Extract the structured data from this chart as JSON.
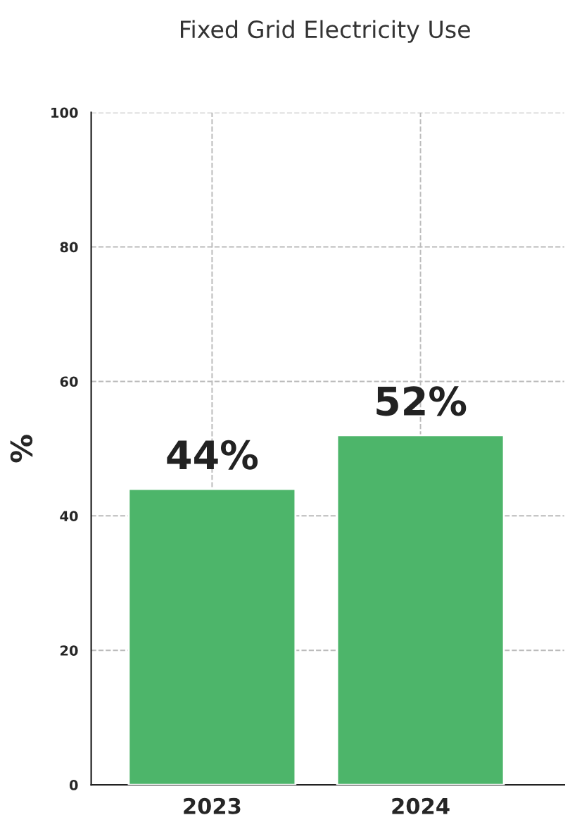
{
  "chart_data": {
    "type": "bar",
    "title": "Fixed Grid Electricity Use",
    "ylabel": "%",
    "categories": [
      "2023",
      "2024"
    ],
    "values": [
      44,
      52
    ],
    "value_labels": [
      "44%",
      "52%"
    ],
    "color": "#4db56a",
    "ylim": [
      0,
      100
    ],
    "yticks": [
      0,
      20,
      40,
      60,
      80,
      100
    ],
    "grid": true
  }
}
